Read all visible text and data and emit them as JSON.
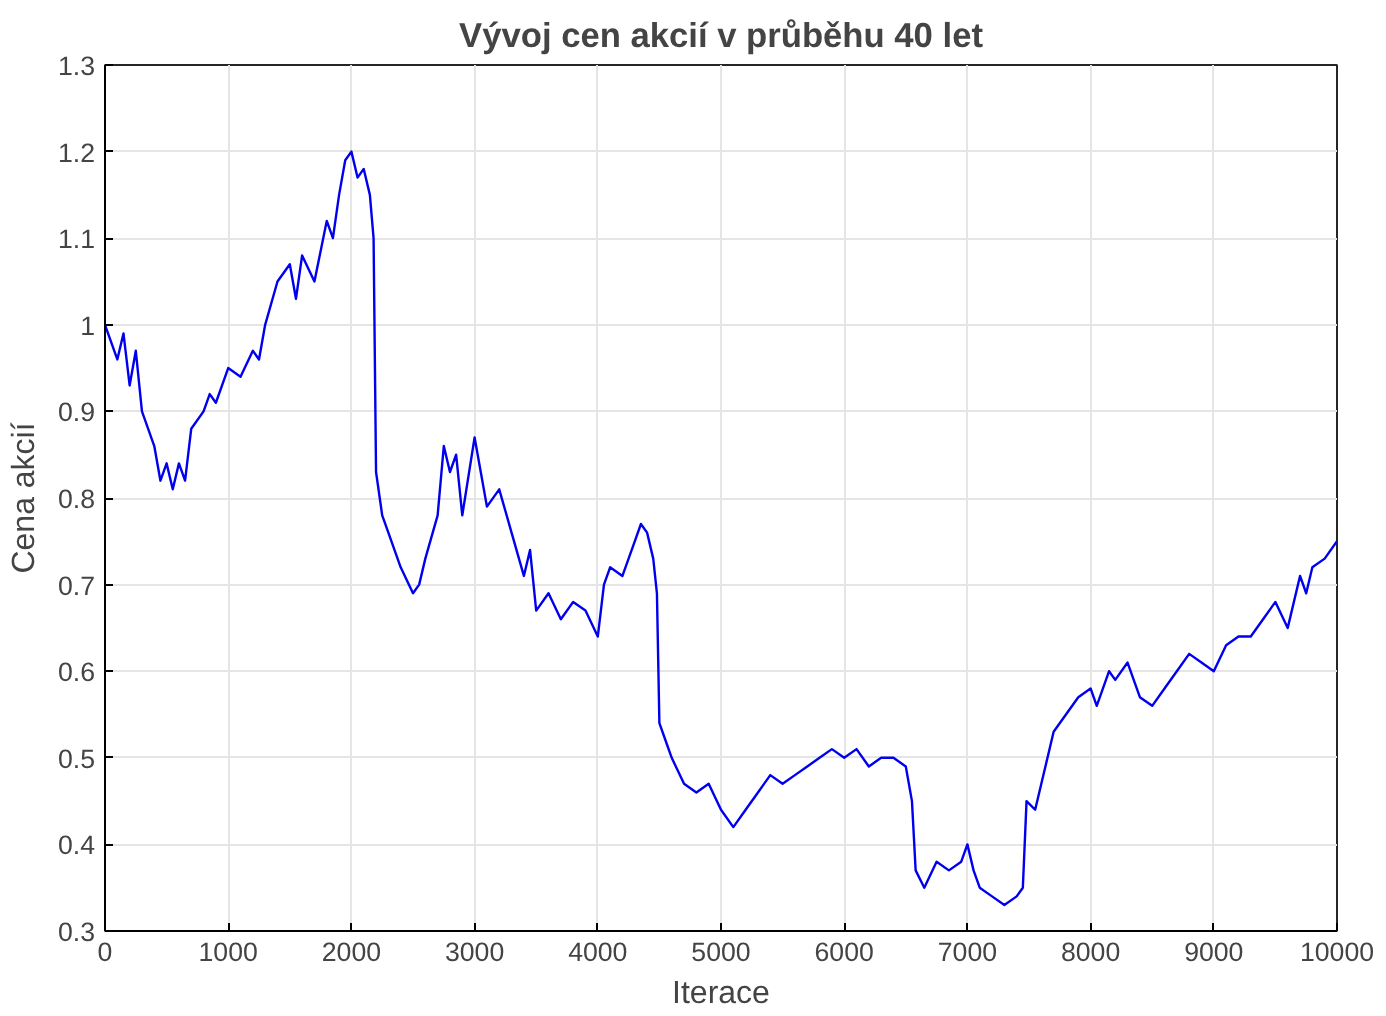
{
  "chart_data": {
    "type": "line",
    "title": "Vývoj cen akcií v průběhu 40 let",
    "xlabel": "Iterace",
    "ylabel": "Cena akcií",
    "xlim": [
      0,
      10000
    ],
    "ylim": [
      0.3,
      1.3
    ],
    "xticks": [
      0,
      1000,
      2000,
      3000,
      4000,
      5000,
      6000,
      7000,
      8000,
      9000,
      10000
    ],
    "yticks": [
      0.3,
      0.4,
      0.5,
      0.6,
      0.7,
      0.8,
      0.9,
      1,
      1.1,
      1.2,
      1.3
    ],
    "grid": true,
    "marker": "none",
    "line_style": "solid",
    "x": [
      0,
      100,
      150,
      200,
      250,
      300,
      400,
      450,
      500,
      550,
      600,
      650,
      700,
      800,
      850,
      900,
      1000,
      1100,
      1200,
      1250,
      1300,
      1400,
      1500,
      1550,
      1600,
      1700,
      1800,
      1850,
      1900,
      1950,
      2000,
      2050,
      2100,
      2150,
      2180,
      2200,
      2250,
      2300,
      2400,
      2500,
      2550,
      2600,
      2700,
      2750,
      2800,
      2850,
      2900,
      3000,
      3050,
      3100,
      3200,
      3300,
      3400,
      3450,
      3500,
      3600,
      3700,
      3800,
      3900,
      4000,
      4050,
      4100,
      4200,
      4300,
      4350,
      4400,
      4450,
      4480,
      4500,
      4550,
      4600,
      4700,
      4800,
      4900,
      5000,
      5100,
      5200,
      5300,
      5400,
      5500,
      5600,
      5700,
      5800,
      5900,
      6000,
      6100,
      6200,
      6300,
      6400,
      6500,
      6550,
      6580,
      6650,
      6750,
      6850,
      6950,
      7000,
      7050,
      7100,
      7200,
      7300,
      7400,
      7450,
      7480,
      7550,
      7600,
      7700,
      7800,
      7900,
      8000,
      8050,
      8150,
      8200,
      8300,
      8400,
      8500,
      8600,
      8700,
      8800,
      8900,
      9000,
      9100,
      9200,
      9300,
      9400,
      9500,
      9600,
      9700,
      9750,
      9800,
      9900,
      10000
    ],
    "series": [
      {
        "color": "#0000ee",
        "values": [
          1.0,
          0.96,
          0.99,
          0.93,
          0.97,
          0.9,
          0.86,
          0.82,
          0.84,
          0.81,
          0.84,
          0.82,
          0.88,
          0.9,
          0.92,
          0.91,
          0.95,
          0.94,
          0.97,
          0.96,
          1.0,
          1.05,
          1.07,
          1.03,
          1.08,
          1.05,
          1.12,
          1.1,
          1.15,
          1.19,
          1.2,
          1.17,
          1.18,
          1.15,
          1.1,
          0.83,
          0.78,
          0.76,
          0.72,
          0.69,
          0.7,
          0.73,
          0.78,
          0.86,
          0.83,
          0.85,
          0.78,
          0.87,
          0.83,
          0.79,
          0.81,
          0.76,
          0.71,
          0.74,
          0.67,
          0.69,
          0.66,
          0.68,
          0.67,
          0.64,
          0.7,
          0.72,
          0.71,
          0.75,
          0.77,
          0.76,
          0.73,
          0.69,
          0.54,
          0.52,
          0.5,
          0.47,
          0.46,
          0.47,
          0.44,
          0.42,
          0.44,
          0.46,
          0.48,
          0.47,
          0.48,
          0.49,
          0.5,
          0.51,
          0.5,
          0.51,
          0.49,
          0.5,
          0.5,
          0.49,
          0.45,
          0.37,
          0.35,
          0.38,
          0.37,
          0.38,
          0.4,
          0.37,
          0.35,
          0.34,
          0.33,
          0.34,
          0.35,
          0.45,
          0.44,
          0.47,
          0.53,
          0.55,
          0.57,
          0.58,
          0.56,
          0.6,
          0.59,
          0.61,
          0.57,
          0.56,
          0.58,
          0.6,
          0.62,
          0.61,
          0.6,
          0.63,
          0.64,
          0.64,
          0.66,
          0.68,
          0.65,
          0.71,
          0.69,
          0.72,
          0.73,
          0.75
        ]
      }
    ]
  }
}
